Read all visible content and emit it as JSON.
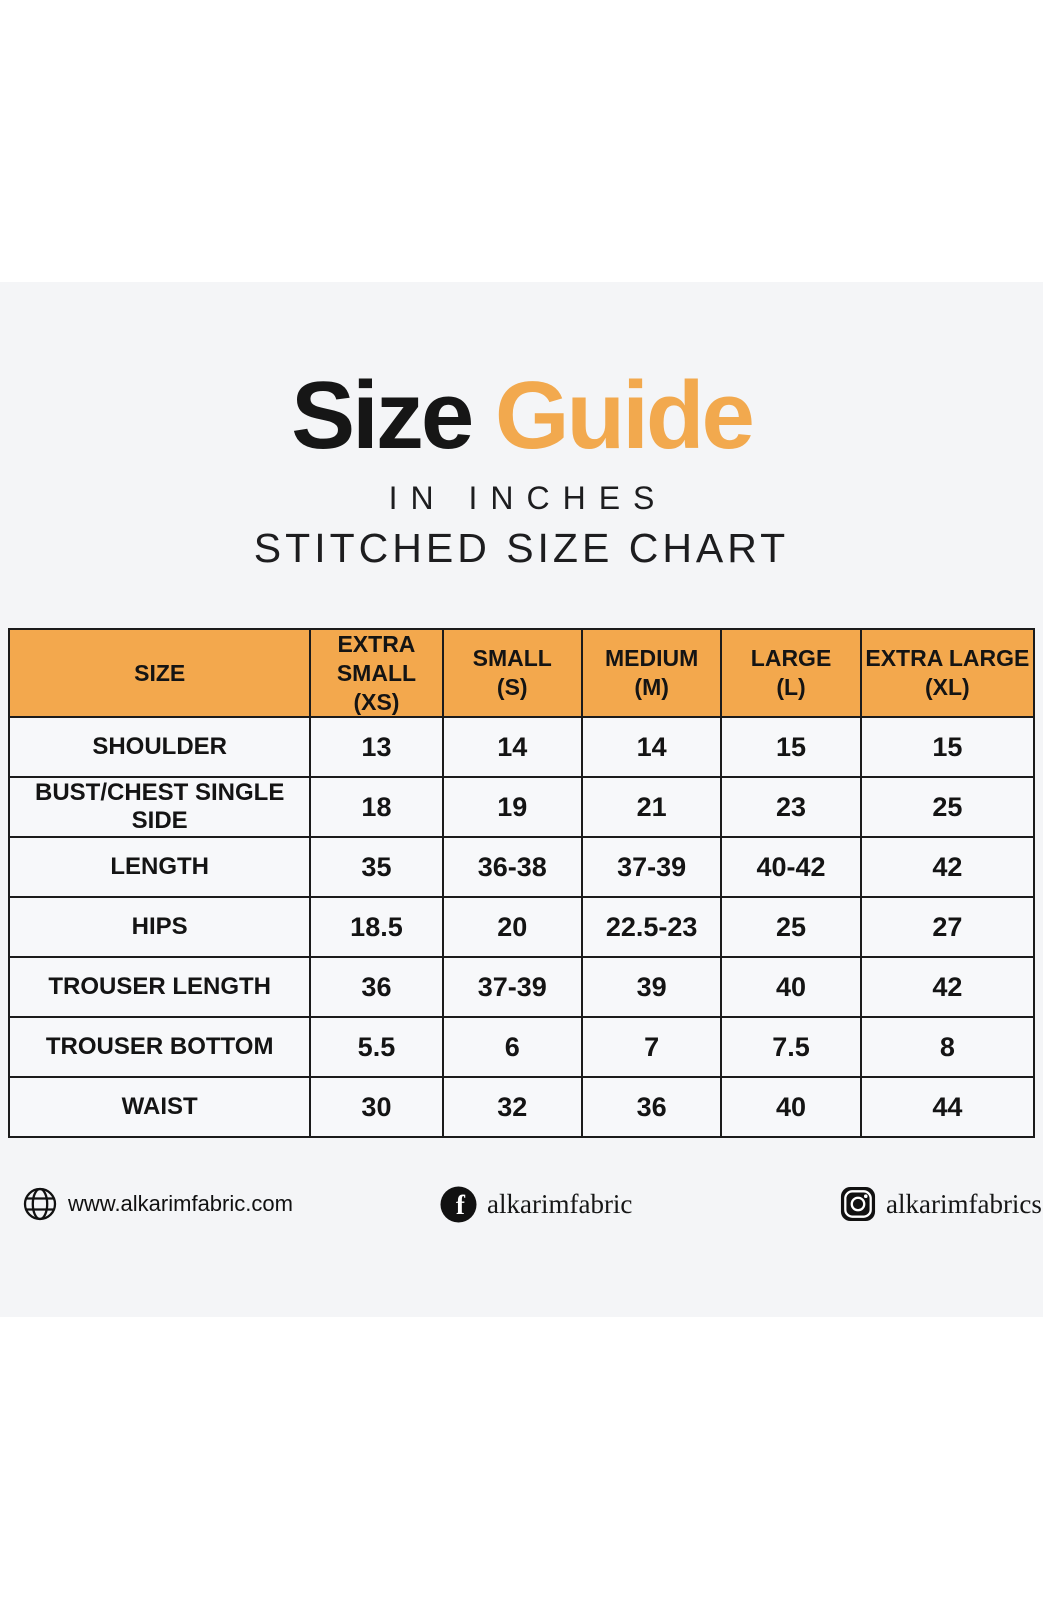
{
  "title": {
    "word_black": "Size",
    "word_orange": "Guide"
  },
  "subtitle_inches": "IN INCHES",
  "subtitle_chart": "STITCHED SIZE CHART",
  "colors": {
    "accent_orange": "#f3a84d",
    "band_background": "#f4f5f7",
    "table_border": "#1b1b1b",
    "text_black": "#161616"
  },
  "chart_data": {
    "type": "table",
    "title": "Size Guide",
    "subtitle": "IN INCHES - STITCHED SIZE CHART",
    "unit": "inches",
    "columns": [
      "SIZE",
      "EXTRA\nSMALL (XS)",
      "SMALL\n(S)",
      "MEDIUM\n(M)",
      "LARGE\n(L)",
      "EXTRA LARGE\n(XL)"
    ],
    "rows": [
      {
        "label": "SHOULDER",
        "values": [
          "13",
          "14",
          "14",
          "15",
          "15"
        ]
      },
      {
        "label": "BUST/CHEST SINGLE SIDE",
        "values": [
          "18",
          "19",
          "21",
          "23",
          "25"
        ]
      },
      {
        "label": "LENGTH",
        "values": [
          "35",
          "36-38",
          "37-39",
          "40-42",
          "42"
        ]
      },
      {
        "label": "HIPS",
        "values": [
          "18.5",
          "20",
          "22.5-23",
          "25",
          "27"
        ]
      },
      {
        "label": "TROUSER LENGTH",
        "values": [
          "36",
          "37-39",
          "39",
          "40",
          "42"
        ]
      },
      {
        "label": "TROUSER BOTTOM",
        "values": [
          "5.5",
          "6",
          "7",
          "7.5",
          "8"
        ]
      },
      {
        "label": "WAIST",
        "values": [
          "30",
          "32",
          "36",
          "40",
          "44"
        ]
      }
    ]
  },
  "footer": {
    "website": {
      "icon": "globe-icon",
      "text": "www.alkarimfabric.com"
    },
    "facebook": {
      "icon": "facebook-icon",
      "text": "alkarimfabric"
    },
    "instagram": {
      "icon": "instagram-icon",
      "text": "alkarimfabrics"
    }
  }
}
